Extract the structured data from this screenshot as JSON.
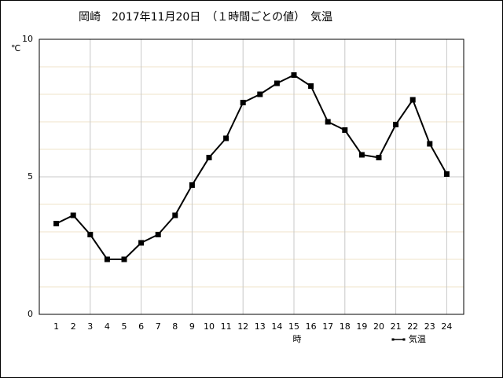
{
  "chart_data": {
    "type": "line",
    "title": "岡崎　2017年11月20日　（１時間ごとの値）　気温",
    "x_label": "時",
    "y_label": "℃",
    "categories": [
      "1",
      "2",
      "3",
      "4",
      "5",
      "6",
      "7",
      "8",
      "9",
      "10",
      "11",
      "12",
      "13",
      "14",
      "15",
      "16",
      "17",
      "18",
      "19",
      "20",
      "21",
      "22",
      "23",
      "24"
    ],
    "series": [
      {
        "name": "気温",
        "color": "#000000",
        "values": [
          3.3,
          3.6,
          2.9,
          2.0,
          2.0,
          2.6,
          2.9,
          3.6,
          4.7,
          5.7,
          6.4,
          7.7,
          8.0,
          8.4,
          8.7,
          8.3,
          7.0,
          6.7,
          5.8,
          5.7,
          6.9,
          7.8,
          6.2,
          5.1
        ]
      }
    ],
    "ylim": [
      0,
      10
    ],
    "yticks": [
      0,
      5,
      10
    ],
    "y_minor_grid": [
      1,
      2,
      3,
      4,
      6,
      7,
      8,
      9
    ],
    "x_grid_every": 3,
    "grid": true,
    "legend": "bottom-right"
  }
}
